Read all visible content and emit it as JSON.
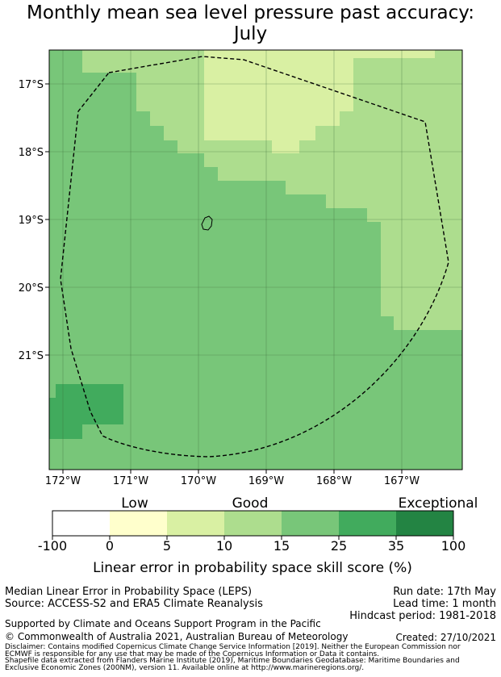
{
  "title": {
    "line1": "Monthly mean sea level pressure past accuracy:",
    "line2": "July"
  },
  "map": {
    "lat_labels": [
      "17°S",
      "18°S",
      "19°S",
      "20°S",
      "21°S"
    ],
    "lon_labels": [
      "172°W",
      "171°W",
      "170°W",
      "169°W",
      "168°W",
      "167°W"
    ],
    "grid": true,
    "outline": "dashed EEZ boundary",
    "island": "Niue"
  },
  "colorbar": {
    "categories": [
      "Low",
      "Good",
      "Exceptional"
    ],
    "ticks": [
      "-100",
      "0",
      "5",
      "10",
      "15",
      "25",
      "35",
      "100"
    ],
    "colors": [
      "#ffffff",
      "#ffffcc",
      "#d9f0a3",
      "#addd8e",
      "#78c679",
      "#41ab5d",
      "#238443"
    ],
    "title": "Linear error in probability space skill score (%)"
  },
  "footer": {
    "method": "Median Linear Error in Probability Space (LEPS)",
    "source": "Source: ACCESS-S2 and ERA5 Climate Reanalysis",
    "run_date": "Run date: 17th May",
    "lead_time": "Lead time: 1 month",
    "hindcast": "Hindcast period: 1981-2018",
    "support": "Supported by Climate and Oceans Support Program in the Pacific",
    "copyright": "© Commonwealth of Australia 2021, Australian Bureau of Meteorology",
    "created": "Created: 27/10/2021",
    "disclaimer1": "Disclaimer: Contains modified Copernicus Climate Change Service Information [2019]. Neither the European Commission nor",
    "disclaimer2": "ECMWF is responsible for any use that may be made of the Copernicus Information or Data it contains.",
    "shapefile1": "Shapefile data extracted from Flanders Marine Institute (2019), Maritime Boundaries Geodatabase: Maritime Boundaries and",
    "shapefile2": "Exclusive Economic Zones (200NM), version 11. Available online at http://www.marineregions.org/."
  }
}
